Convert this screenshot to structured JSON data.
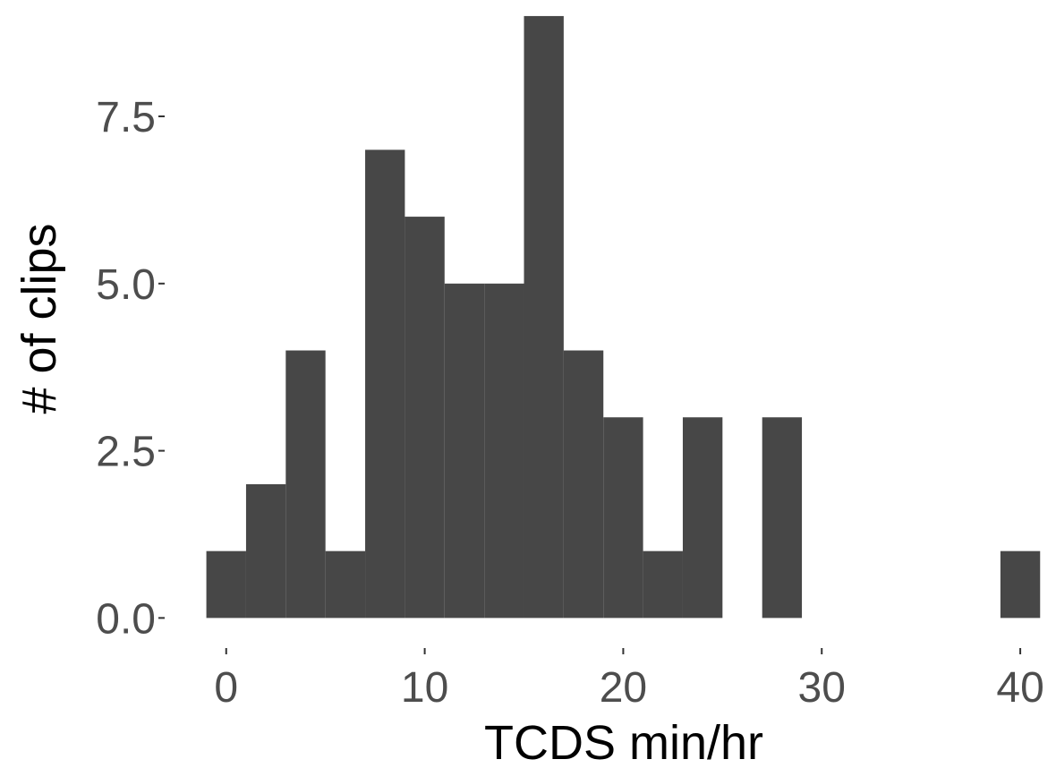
{
  "chart_data": {
    "type": "histogram",
    "x_label": "TCDS min/hr",
    "y_label": "# of clips",
    "bins": [
      -1,
      1,
      3,
      5,
      7,
      9,
      11,
      13,
      15,
      17,
      19,
      21,
      23,
      25,
      27,
      29,
      31,
      33,
      35,
      37,
      39,
      41
    ],
    "values": [
      1,
      2,
      4,
      1,
      7,
      6,
      5,
      5,
      9,
      4,
      3,
      1,
      3,
      0,
      3,
      0,
      0,
      0,
      0,
      0,
      1
    ],
    "color": "#474747",
    "xlim": [
      -3.1,
      41.8
    ],
    "ylim": [
      -0.45,
      9.24
    ],
    "xticks": [
      0,
      10,
      20,
      30,
      40
    ],
    "yticks": [
      {
        "value": 0,
        "label": "0.0"
      },
      {
        "value": 2.5,
        "label": "2.5"
      },
      {
        "value": 5,
        "label": "5.0"
      },
      {
        "value": 7.5,
        "label": "7.5"
      }
    ]
  }
}
